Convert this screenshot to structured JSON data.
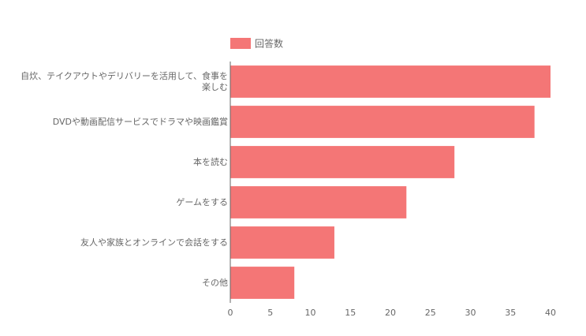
{
  "chart_data": {
    "type": "barh",
    "categories": [
      "自炊、テイクアウトやデリバリーを活用して、食事を楽しむ",
      "DVDや動画配信サービスでドラマや映画鑑賞",
      "本を読む",
      "ゲームをする",
      "友人や家族とオンラインで会話をする",
      "その他"
    ],
    "series": [
      {
        "name": "回答数",
        "color": "#f47676",
        "values": [
          40,
          38,
          28,
          22,
          13,
          8
        ]
      }
    ],
    "xlim": [
      0,
      40
    ],
    "xticks": [
      0,
      5,
      10,
      15,
      20,
      25,
      30,
      35,
      40
    ],
    "grid": false,
    "legend": "top"
  }
}
